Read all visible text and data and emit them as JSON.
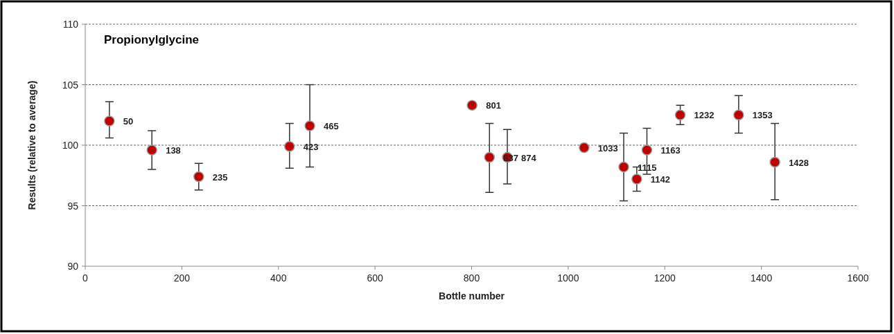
{
  "chart_data": {
    "type": "scatter",
    "title": "Propionylglycine",
    "xlabel": "Bottle number",
    "ylabel": "Results (relative to average)",
    "x": [
      50,
      138,
      235,
      423,
      465,
      801,
      837,
      874,
      1033,
      1115,
      1142,
      1163,
      1232,
      1353,
      1428
    ],
    "series": [
      {
        "color": "#c00000",
        "values": [
          102.0,
          99.6,
          97.4,
          99.9,
          101.6,
          103.3,
          99.0,
          99.0,
          99.8,
          98.2,
          97.2,
          99.6,
          102.5,
          102.5,
          98.6
        ],
        "errors": [
          [
            100.6,
            103.6
          ],
          [
            98.0,
            101.2
          ],
          [
            96.3,
            98.5
          ],
          [
            98.1,
            101.8
          ],
          [
            98.2,
            105.0
          ],
          null,
          [
            96.1,
            101.8
          ],
          [
            96.8,
            101.3
          ],
          null,
          [
            95.4,
            101.0
          ],
          [
            96.2,
            98.2
          ],
          [
            97.6,
            101.4
          ],
          [
            101.7,
            103.3
          ],
          [
            101.0,
            104.1
          ],
          [
            95.5,
            101.8
          ]
        ]
      }
    ],
    "annotations": [
      {
        "text": "50",
        "x": 50,
        "y": 102.0
      },
      {
        "text": "138",
        "x": 138,
        "y": 99.6
      },
      {
        "text": "235",
        "x": 235,
        "y": 97.4
      },
      {
        "text": "423",
        "x": 423,
        "y": 99.9
      },
      {
        "text": "465",
        "x": 465,
        "y": 101.6
      },
      {
        "text": "801",
        "x": 801,
        "y": 103.3
      },
      {
        "text": "837",
        "x": 837,
        "y": 99.0
      },
      {
        "text": "874",
        "x": 874,
        "y": 99.0
      },
      {
        "text": "1033",
        "x": 1033,
        "y": 99.8
      },
      {
        "text": "1115",
        "x": 1115,
        "y": 98.2
      },
      {
        "text": "1142",
        "x": 1142,
        "y": 97.2
      },
      {
        "text": "1163",
        "x": 1163,
        "y": 99.6
      },
      {
        "text": "1232",
        "x": 1232,
        "y": 102.5
      },
      {
        "text": "1353",
        "x": 1353,
        "y": 102.5
      },
      {
        "text": "1428",
        "x": 1428,
        "y": 98.6
      }
    ],
    "xlim": [
      0,
      1600
    ],
    "xticks": [
      0,
      200,
      400,
      600,
      800,
      1000,
      1200,
      1400,
      1600
    ],
    "ylim": [
      90,
      110
    ],
    "yticks": [
      90,
      95,
      100,
      105,
      110
    ],
    "grid": "y",
    "marker": "circle"
  }
}
